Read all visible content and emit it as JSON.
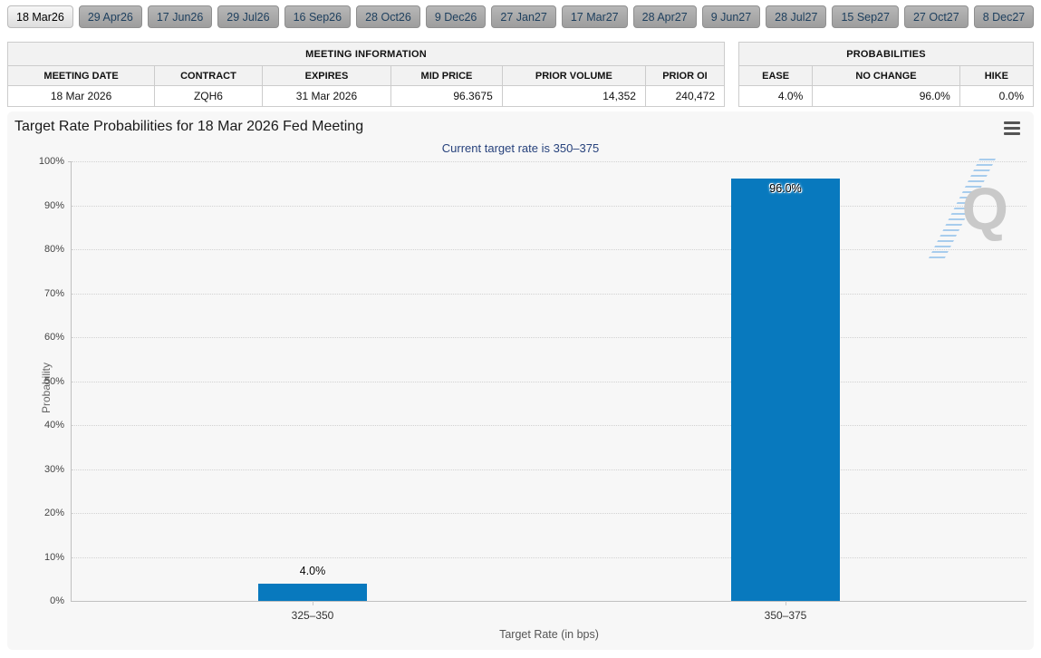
{
  "tabs": {
    "items": [
      {
        "label": "18 Mar26",
        "active": true
      },
      {
        "label": "29 Apr26",
        "active": false
      },
      {
        "label": "17 Jun26",
        "active": false
      },
      {
        "label": "29 Jul26",
        "active": false
      },
      {
        "label": "16 Sep26",
        "active": false
      },
      {
        "label": "28 Oct26",
        "active": false
      },
      {
        "label": "9 Dec26",
        "active": false
      },
      {
        "label": "27 Jan27",
        "active": false
      },
      {
        "label": "17 Mar27",
        "active": false
      },
      {
        "label": "28 Apr27",
        "active": false
      },
      {
        "label": "9 Jun27",
        "active": false
      },
      {
        "label": "28 Jul27",
        "active": false
      },
      {
        "label": "15 Sep27",
        "active": false
      },
      {
        "label": "27 Oct27",
        "active": false
      },
      {
        "label": "8 Dec27",
        "active": false
      }
    ]
  },
  "meeting_info": {
    "title": "MEETING INFORMATION",
    "headers": [
      "MEETING DATE",
      "CONTRACT",
      "EXPIRES",
      "MID PRICE",
      "PRIOR VOLUME",
      "PRIOR OI"
    ],
    "row": {
      "meeting_date": "18 Mar 2026",
      "contract": "ZQH6",
      "expires": "31 Mar 2026",
      "mid_price": "96.3675",
      "prior_volume": "14,352",
      "prior_oi": "240,472"
    }
  },
  "probabilities": {
    "title": "PROBABILITIES",
    "headers": [
      "EASE",
      "NO CHANGE",
      "HIKE"
    ],
    "row": {
      "ease": "4.0%",
      "no_change": "96.0%",
      "hike": "0.0%"
    }
  },
  "chart_data": {
    "type": "bar",
    "title": "Target Rate Probabilities for 18 Mar 2026 Fed Meeting",
    "subtitle": "Current target rate is 350–375",
    "categories": [
      "325–350",
      "350–375"
    ],
    "values": [
      4.0,
      96.0
    ],
    "value_labels": [
      "4.0%",
      "96.0%"
    ],
    "xlabel": "Target Rate (in bps)",
    "ylabel": "Probability",
    "ylim": [
      0,
      100
    ],
    "yticks": [
      "0%",
      "10%",
      "20%",
      "30%",
      "40%",
      "50%",
      "60%",
      "70%",
      "80%",
      "90%",
      "100%"
    ],
    "grid": "dotted horizontal gridlines every 10%",
    "legend": "none",
    "bar_color": "#0879BE",
    "menu_icon": "hamburger-menu-icon",
    "watermark": "QuikStrike Q logo"
  },
  "colors": {
    "bar_blue": "#0879BE",
    "subtitle_navy": "#27427C",
    "panel_bg": "#F7F7F7",
    "tab_inactive_bg": "#A6A6A6",
    "tab_text_navy": "#1D3F5E",
    "table_header_bg": "#F2F2F2"
  }
}
